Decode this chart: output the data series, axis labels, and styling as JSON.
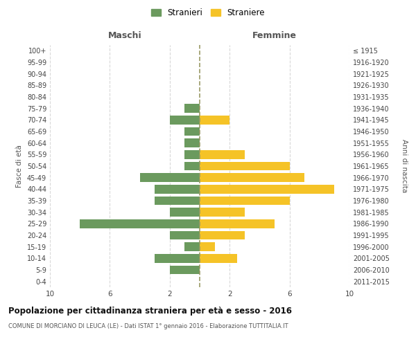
{
  "age_groups": [
    "0-4",
    "5-9",
    "10-14",
    "15-19",
    "20-24",
    "25-29",
    "30-34",
    "35-39",
    "40-44",
    "45-49",
    "50-54",
    "55-59",
    "60-64",
    "65-69",
    "70-74",
    "75-79",
    "80-84",
    "85-89",
    "90-94",
    "95-99",
    "100+"
  ],
  "birth_years": [
    "2011-2015",
    "2006-2010",
    "2001-2005",
    "1996-2000",
    "1991-1995",
    "1986-1990",
    "1981-1985",
    "1976-1980",
    "1971-1975",
    "1966-1970",
    "1961-1965",
    "1956-1960",
    "1951-1955",
    "1946-1950",
    "1941-1945",
    "1936-1940",
    "1931-1935",
    "1926-1930",
    "1921-1925",
    "1916-1920",
    "≤ 1915"
  ],
  "males": [
    0,
    2,
    3,
    1,
    2,
    8,
    2,
    3,
    3,
    4,
    1,
    1,
    1,
    1,
    2,
    1,
    0,
    0,
    0,
    0,
    0
  ],
  "females": [
    0,
    0,
    2.5,
    1,
    3,
    5,
    3,
    6,
    9,
    7,
    6,
    3,
    0,
    0,
    2,
    0,
    0,
    0,
    0,
    0,
    0
  ],
  "male_color": "#6b9a5e",
  "female_color": "#f5c327",
  "male_label": "Stranieri",
  "female_label": "Straniere",
  "title": "Popolazione per cittadinanza straniera per età e sesso - 2016",
  "subtitle": "COMUNE DI MORCIANO DI LEUCA (LE) - Dati ISTAT 1° gennaio 2016 - Elaborazione TUTTITALIA.IT",
  "xlabel_left": "Maschi",
  "xlabel_right": "Femmine",
  "ylabel_left": "Fasce di età",
  "ylabel_right": "Anni di nascita",
  "xlim": 10,
  "background_color": "#ffffff",
  "grid_color": "#d8d8d8",
  "center_line_color": "#999966"
}
